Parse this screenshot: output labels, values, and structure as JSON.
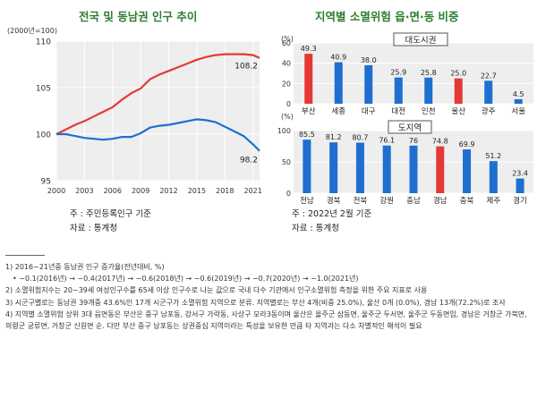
{
  "chart_data": [
    {
      "type": "line",
      "title": "전국 및 동남권 인구 추이",
      "ylabel": "(2000년=100)",
      "ylim": [
        95,
        110
      ],
      "yticks": [
        "95",
        "100",
        "105",
        "110"
      ],
      "xticks": [
        "2000",
        "2003",
        "2006",
        "2009",
        "2012",
        "2015",
        "2018",
        "2021"
      ],
      "grid": true,
      "x": [
        2000,
        2001,
        2002,
        2003,
        2004,
        2005,
        2006,
        2007,
        2008,
        2009,
        2010,
        2011,
        2012,
        2013,
        2014,
        2015,
        2016,
        2017,
        2018,
        2019,
        2020,
        2021,
        2021.7
      ],
      "series": [
        {
          "color": "#e53935",
          "end_label": "108.2",
          "values": [
            100,
            100.5,
            101.0,
            101.4,
            101.9,
            102.4,
            102.9,
            103.7,
            104.4,
            104.9,
            105.9,
            106.4,
            106.8,
            107.2,
            107.6,
            108.0,
            108.3,
            108.5,
            108.6,
            108.6,
            108.6,
            108.5,
            108.2
          ]
        },
        {
          "color": "#1e6fd0",
          "end_label": "98.2",
          "values": [
            100,
            100.0,
            99.8,
            99.6,
            99.5,
            99.4,
            99.5,
            99.7,
            99.7,
            100.1,
            100.7,
            100.9,
            101.0,
            101.2,
            101.4,
            101.6,
            101.5,
            101.3,
            100.8,
            100.3,
            99.8,
            98.9,
            98.2
          ]
        }
      ],
      "source": "주 : 주민등록인구 기준",
      "publisher": "자료 : 통계청"
    },
    {
      "type": "bar",
      "title": "지역별 소멸위험 읍·면·동 비중",
      "unit": "(%)",
      "panels": [
        {
          "name": "대도시권",
          "ylim": [
            0,
            60
          ],
          "yticks": [
            "0",
            "20",
            "40",
            "60"
          ],
          "categories": [
            "부산",
            "세종",
            "대구",
            "대전",
            "인천",
            "울산",
            "광주",
            "서울"
          ],
          "values": [
            49.3,
            40.9,
            38.0,
            25.9,
            25.8,
            25.0,
            22.7,
            4.5
          ],
          "labels": [
            "49.3",
            "40.9",
            "38.0",
            "25.9",
            "25.8",
            "25.0",
            "22.7",
            "4.5"
          ],
          "highlight": [
            0,
            5
          ]
        },
        {
          "name": "도지역",
          "ylim": [
            0,
            100
          ],
          "yticks": [
            "0",
            "50",
            "100"
          ],
          "categories": [
            "전남",
            "경북",
            "전북",
            "강원",
            "충남",
            "경남",
            "충북",
            "제주",
            "경기"
          ],
          "values": [
            85.5,
            81.2,
            80.7,
            76.1,
            76,
            74.8,
            69.9,
            51.2,
            23.4
          ],
          "labels": [
            "85.5",
            "81.2",
            "80.7",
            "76.1",
            "76",
            "74.8",
            "69.9",
            "51.2",
            "23.4"
          ],
          "highlight": [
            5
          ]
        }
      ],
      "source": "주 : 2022년 2월 기준",
      "publisher": "자료 : 통계청"
    }
  ],
  "colors": {
    "title": "#2e7d32",
    "red": "#e53935",
    "blue": "#1e6fd0",
    "plot_bg": "#eeeeee"
  },
  "notes": [
    "1) 2016~21년중 동남권 인구 증가율(전년대비, %)",
    "  • −0.1(2016년) → −0.4(2017년) → −0.6(2018년) → −0.6(2019년) → −0.7(2020년) → −1.0(2021년)",
    "2) 소멸위험지수는 20~39세 여성인구수를 65세 이상 인구수로 나눈 값으로 국내 다수 기관에서 인구소멸위험 측정을 위한 주요 지표로 사용",
    "3) 시군구별로는 동남권 39개중 43.6%인 17개 시군구가 소멸위험 지역으로 분류. 지역별로는 부산 4개(비중 25.0%), 울산 0개 (0.0%), 경남 13개(72.2%)로 조사",
    "4) 지역별 소멸위험 상위 3대 읍면동은 부산은 중구 남포동, 강서구 가락동, 사상구 모라3동이며 울산은 울주군 삼동면, 울주군 두서면, 울주군 두동면임, 경남은 거창군 가북면, 의령군 궁류면, 거창군 신원면 순. 다만 부산 중구 남포동는 상권중심 지역이라는 특성을 보유한 만큼 타 지역과는 다소 차별적인 해석이 필요"
  ]
}
